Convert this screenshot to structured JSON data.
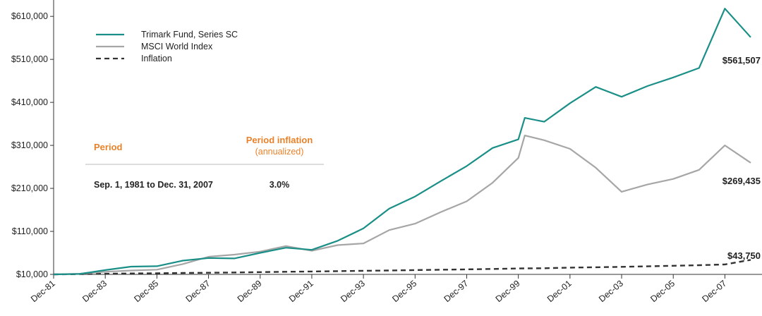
{
  "chart_data": {
    "type": "line",
    "x": [
      "Dec-81",
      "Dec-82",
      "Dec-83",
      "Dec-84",
      "Dec-85",
      "Dec-86",
      "Dec-87",
      "Dec-88",
      "Dec-89",
      "Dec-90",
      "Dec-91",
      "Dec-92",
      "Dec-93",
      "Dec-94",
      "Dec-95",
      "Dec-96",
      "Dec-97",
      "Dec-98",
      "Dec-99",
      "Mar-00",
      "Dec-00",
      "Dec-01",
      "Dec-02",
      "Dec-03",
      "Dec-04",
      "Dec-05",
      "Dec-06",
      "Dec-07",
      "Dec-08"
    ],
    "x_tick_labels": [
      "Dec-81",
      "Dec-83",
      "Dec-85",
      "Dec-87",
      "Dec-89",
      "Dec-91",
      "Dec-93",
      "Dec-95",
      "Dec-97",
      "Dec-99",
      "Dec-01",
      "Dec-03",
      "Dec-05",
      "Dec-07"
    ],
    "y_tick_labels": [
      "$10,000",
      "$110,000",
      "$210,000",
      "$310,000",
      "$410,000",
      "$510,000",
      "$610,000"
    ],
    "ylim": [
      10000,
      630000
    ],
    "series": [
      {
        "name": "Trimark Fund, Series SC",
        "color": "#1a8f87",
        "style": "solid",
        "values": [
          10000,
          11000,
          20000,
          28000,
          29000,
          42000,
          48000,
          47000,
          60000,
          72000,
          67000,
          88000,
          117000,
          163000,
          191000,
          227000,
          262000,
          304000,
          324000,
          374000,
          365000,
          408000,
          446000,
          423000,
          448000,
          468000,
          490000,
          628000,
          561507
        ],
        "end_label": "$561,507"
      },
      {
        "name": "MSCI World Index",
        "color": "#a6a6a6",
        "style": "solid",
        "values": [
          10000,
          11500,
          16000,
          19000,
          21000,
          34000,
          51000,
          56000,
          63000,
          76000,
          65000,
          78000,
          82000,
          113000,
          128000,
          155000,
          180000,
          223000,
          281000,
          333000,
          322000,
          302000,
          258000,
          202000,
          219000,
          232000,
          253000,
          310000,
          269435
        ],
        "end_label": "$269,435"
      },
      {
        "name": "Inflation",
        "color": "#333333",
        "style": "dashed",
        "values": [
          10000,
          10700,
          11400,
          12100,
          12700,
          13200,
          13800,
          14500,
          15200,
          16000,
          16800,
          17500,
          18300,
          19100,
          20000,
          20800,
          21700,
          22700,
          23700,
          23900,
          24300,
          25700,
          26600,
          27500,
          28700,
          30000,
          31300,
          33100,
          43750
        ],
        "end_label": "$43,750"
      }
    ],
    "legend": {
      "position": "top-left"
    },
    "grid": false,
    "table": {
      "headers": [
        "Period",
        "Period inflation"
      ],
      "subheader": "(annualized)",
      "rows": [
        {
          "period": "Sep. 1, 1981 to Dec. 31, 2007",
          "inflation": "3.0%"
        }
      ]
    }
  }
}
